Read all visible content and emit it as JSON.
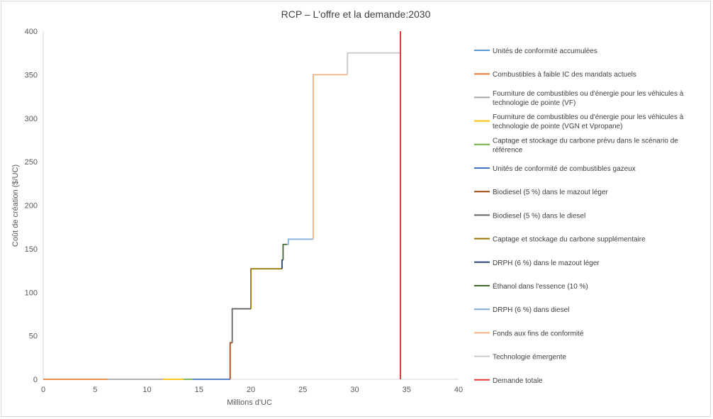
{
  "chart_data": {
    "type": "line",
    "title": "RCP – L'offre et la demande:2030",
    "xlabel": "Millions d'UC",
    "ylabel": "Coût de création ($/UC)",
    "xlim": [
      0,
      40
    ],
    "ylim": [
      0,
      400
    ],
    "xticks": [
      0,
      5,
      10,
      15,
      20,
      25,
      30,
      35,
      40
    ],
    "yticks": [
      0,
      50,
      100,
      150,
      200,
      250,
      300,
      350,
      400
    ],
    "grid": false,
    "legend_position": "right",
    "series": [
      {
        "name": "Unités de conformité accumulées",
        "color": "#5b9bd5",
        "points": [
          [
            0,
            0
          ],
          [
            0.1,
            0
          ]
        ]
      },
      {
        "name": "Combustibles à faible IC des mandats actuels",
        "color": "#ed7d31",
        "points": [
          [
            0,
            0
          ],
          [
            6.2,
            0
          ]
        ]
      },
      {
        "name": "Fourniture de combustibles ou d'énergie pour les véhicules à technologie de pointe (VF)",
        "color": "#a5a5a5",
        "points": [
          [
            6.2,
            0
          ],
          [
            11.5,
            0
          ]
        ]
      },
      {
        "name": "Fourniture de combustibles ou d'énergie pour les véhicules à technologie de pointe (VGN et Vpropane)",
        "color": "#ffc000",
        "points": [
          [
            11.5,
            0
          ],
          [
            13.5,
            0
          ]
        ]
      },
      {
        "name": "Captage et stockage du carbone prévu dans le scénario de référence",
        "color": "#70ad47",
        "points": [
          [
            13.5,
            0
          ],
          [
            14.4,
            0
          ]
        ]
      },
      {
        "name": "Unités de conformité de combustibles gazeux",
        "color": "#4472c4",
        "points": [
          [
            14.4,
            0
          ],
          [
            18.0,
            0
          ]
        ]
      },
      {
        "name": "Biodiesel (5 %) dans le mazout léger",
        "color": "#9e480e",
        "points": [
          [
            18.0,
            0
          ],
          [
            18.0,
            42
          ],
          [
            18.2,
            42
          ]
        ]
      },
      {
        "name": "Biodiesel (5 %) dans le diesel",
        "color": "#636363",
        "points": [
          [
            18.2,
            42
          ],
          [
            18.2,
            81
          ],
          [
            20.0,
            81
          ]
        ]
      },
      {
        "name": "Captage et stockage du carbone supplémentaire",
        "color": "#997300",
        "points": [
          [
            20.0,
            81
          ],
          [
            20.0,
            127
          ],
          [
            23.0,
            127
          ]
        ]
      },
      {
        "name": "DRPH (6 %) dans le mazout léger",
        "color": "#264478",
        "points": [
          [
            23.0,
            127
          ],
          [
            23.0,
            137
          ],
          [
            23.1,
            137
          ]
        ]
      },
      {
        "name": "Éthanol dans l'essence (10 %)",
        "color": "#43682b",
        "points": [
          [
            23.1,
            137
          ],
          [
            23.1,
            155
          ],
          [
            23.5,
            155
          ]
        ]
      },
      {
        "name": "DRPH (6 %) dans diesel",
        "color": "#7cafdd",
        "points": [
          [
            23.5,
            155
          ],
          [
            23.6,
            155
          ],
          [
            23.6,
            161
          ],
          [
            26.0,
            161
          ]
        ]
      },
      {
        "name": "Fonds aux fins de conformité",
        "color": "#f4b183",
        "points": [
          [
            26.0,
            161
          ],
          [
            26.0,
            350
          ],
          [
            29.3,
            350
          ]
        ]
      },
      {
        "name": "Technologie émergente",
        "color": "#c9c9c9",
        "points": [
          [
            29.3,
            350
          ],
          [
            29.3,
            375
          ],
          [
            34.4,
            375
          ]
        ]
      },
      {
        "name": "Demande totale",
        "color": "#e5383b",
        "points": [
          [
            34.4,
            0
          ],
          [
            34.4,
            400
          ]
        ]
      }
    ]
  }
}
